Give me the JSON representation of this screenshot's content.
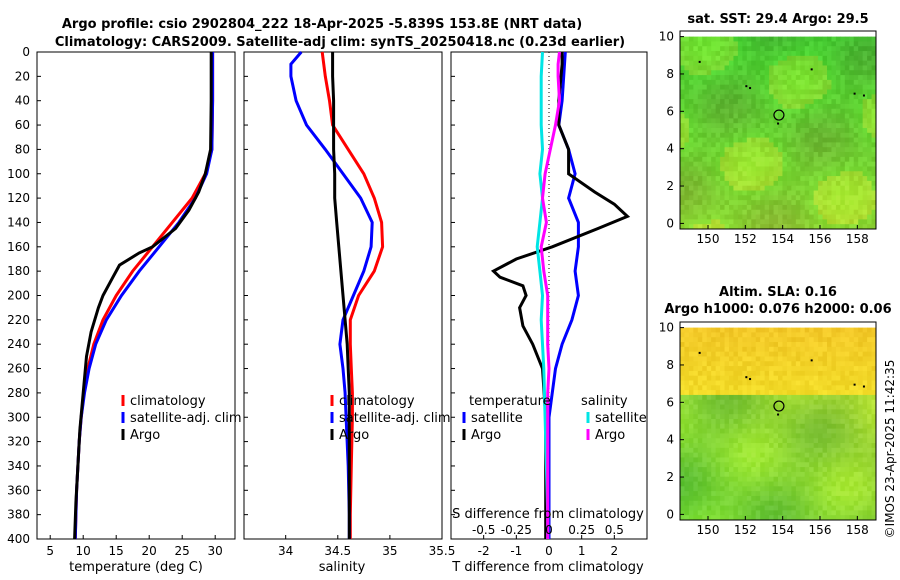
{
  "header": {
    "line1": "Argo profile: csio 2902804_222 18-Apr-2025 -5.839S 153.8E (NRT data)",
    "line2": "Climatology: CARS2009. Satellite-adj clim: synTS_20250418.nc (0.23d earlier)"
  },
  "credit": "©IMOS 23-Apr-2025 11:42:35",
  "colors": {
    "climatology": "#ff0000",
    "satellite": "#0000ff",
    "argo": "#000000",
    "sat_s": "#00e5e5",
    "argo_s": "#ff00ff",
    "sst_fill": "#33cc33",
    "sla_fill": "#d6e84a"
  },
  "chart_data": [
    {
      "id": "temperature",
      "type": "line",
      "xlabel": "temperature (deg C)",
      "ylabel": "",
      "xlim": [
        3,
        33
      ],
      "ylim": [
        0,
        400
      ],
      "xticks": [
        5,
        10,
        15,
        20,
        25,
        30
      ],
      "yticks": [
        0,
        20,
        40,
        60,
        80,
        100,
        120,
        140,
        160,
        180,
        200,
        220,
        240,
        260,
        280,
        300,
        320,
        340,
        360,
        380,
        400
      ],
      "legend": [
        "climatology",
        "satellite-adj. clim",
        "Argo"
      ],
      "series": [
        {
          "name": "climatology",
          "color": "#ff0000",
          "depth": [
            0,
            40,
            80,
            100,
            120,
            140,
            160,
            180,
            200,
            220,
            240,
            260,
            280,
            300,
            320,
            340,
            360,
            380,
            400
          ],
          "values": [
            29.6,
            29.6,
            29.5,
            28.5,
            26.5,
            23.5,
            20.5,
            17.5,
            15.0,
            13.0,
            11.6,
            10.7,
            10.1,
            9.7,
            9.4,
            9.2,
            9.0,
            8.9,
            8.8
          ]
        },
        {
          "name": "satellite-adj. clim",
          "color": "#0000ff",
          "depth": [
            0,
            40,
            80,
            100,
            120,
            140,
            160,
            180,
            200,
            220,
            240,
            260,
            280,
            300,
            320,
            340,
            360,
            380,
            400
          ],
          "values": [
            29.6,
            29.6,
            29.5,
            28.7,
            27.0,
            24.5,
            21.5,
            18.5,
            15.8,
            13.5,
            11.9,
            10.9,
            10.2,
            9.7,
            9.4,
            9.2,
            9.0,
            8.9,
            8.8
          ]
        },
        {
          "name": "Argo",
          "color": "#000000",
          "depth": [
            0,
            40,
            80,
            100,
            115,
            130,
            145,
            160,
            165,
            175,
            185,
            200,
            210,
            230,
            250,
            280,
            310,
            340,
            370,
            400
          ],
          "values": [
            29.4,
            29.4,
            29.3,
            28.5,
            27.5,
            26.0,
            24.0,
            20.5,
            18.5,
            15.5,
            14.5,
            13.0,
            12.3,
            11.2,
            10.5,
            10.0,
            9.5,
            9.2,
            8.9,
            8.7
          ]
        }
      ]
    },
    {
      "id": "salinity",
      "type": "line",
      "xlabel": "salinity",
      "xlim": [
        33.6,
        35.5
      ],
      "ylim": [
        0,
        400
      ],
      "xticks": [
        34,
        34.5,
        35,
        35.5
      ],
      "legend": [
        "climatology",
        "satellite-adj. clim",
        "Argo"
      ],
      "series": [
        {
          "name": "climatology",
          "color": "#ff0000",
          "depth": [
            0,
            20,
            40,
            60,
            80,
            100,
            120,
            140,
            160,
            180,
            200,
            220,
            240,
            260,
            280,
            300,
            340,
            380,
            400
          ],
          "values": [
            34.35,
            34.38,
            34.42,
            34.45,
            34.6,
            34.75,
            34.85,
            34.92,
            34.93,
            34.85,
            34.7,
            34.62,
            34.62,
            34.63,
            34.64,
            34.64,
            34.63,
            34.62,
            34.62
          ]
        },
        {
          "name": "satellite-adj. clim",
          "color": "#0000ff",
          "depth": [
            0,
            10,
            20,
            40,
            60,
            80,
            100,
            120,
            140,
            160,
            180,
            200,
            220,
            240,
            260,
            280,
            300,
            340,
            380,
            400
          ],
          "values": [
            34.15,
            34.05,
            34.05,
            34.1,
            34.2,
            34.38,
            34.55,
            34.72,
            34.83,
            34.82,
            34.75,
            34.65,
            34.55,
            34.52,
            34.55,
            34.57,
            34.58,
            34.6,
            34.61,
            34.61
          ]
        },
        {
          "name": "Argo",
          "color": "#000000",
          "depth": [
            0,
            20,
            40,
            60,
            80,
            100,
            120,
            140,
            160,
            180,
            200,
            220,
            240,
            260,
            280,
            300,
            340,
            380,
            400
          ],
          "values": [
            34.45,
            34.45,
            34.46,
            34.46,
            34.46,
            34.47,
            34.47,
            34.49,
            34.51,
            34.53,
            34.55,
            34.57,
            34.59,
            34.6,
            34.61,
            34.61,
            34.61,
            34.61,
            34.61
          ]
        }
      ]
    },
    {
      "id": "difference",
      "type": "line",
      "xlabel": "T difference from climatology",
      "xlabel_top": "S difference from climatology",
      "xlim": [
        -3,
        3
      ],
      "ylim": [
        0,
        400
      ],
      "xticks": [
        -2,
        -1,
        0,
        1,
        2
      ],
      "xticks_s": [
        "-0.5",
        "-0.25",
        "0",
        "0.25",
        "0.5"
      ],
      "legend_titles": [
        "temperature",
        "salinity"
      ],
      "legend_t": [
        "satellite",
        "Argo"
      ],
      "legend_s": [
        "satellite",
        "Argo"
      ],
      "series": [
        {
          "name": "T satellite",
          "color": "#0000ff",
          "depth": [
            0,
            40,
            60,
            80,
            100,
            120,
            140,
            160,
            180,
            200,
            220,
            240,
            260,
            300,
            340,
            380,
            400
          ],
          "values": [
            0.5,
            0.4,
            0.3,
            0.6,
            0.8,
            0.6,
            0.9,
            0.9,
            0.8,
            0.9,
            0.7,
            0.4,
            0.2,
            0.0,
            0.0,
            0.0,
            0.0
          ]
        },
        {
          "name": "T Argo",
          "color": "#000000",
          "depth": [
            0,
            10,
            40,
            60,
            80,
            100,
            115,
            125,
            135,
            145,
            160,
            170,
            180,
            185,
            192,
            200,
            210,
            225,
            240,
            260,
            300,
            340,
            400
          ],
          "values": [
            0.4,
            0.4,
            0.3,
            0.3,
            0.6,
            0.6,
            1.4,
            2.0,
            2.4,
            1.5,
            0.1,
            -1.0,
            -1.7,
            -1.5,
            -0.8,
            -0.7,
            -0.9,
            -0.8,
            -0.5,
            -0.2,
            -0.1,
            -0.1,
            -0.1
          ]
        },
        {
          "name": "S satellite",
          "color": "#00e5e5",
          "depth": [
            0,
            20,
            40,
            60,
            80,
            100,
            120,
            140,
            160,
            180,
            200,
            220,
            240,
            260,
            300,
            340,
            380,
            400
          ],
          "values": [
            -0.05,
            -0.06,
            -0.06,
            -0.06,
            -0.05,
            -0.07,
            -0.05,
            -0.07,
            -0.09,
            -0.07,
            -0.05,
            -0.06,
            -0.05,
            -0.04,
            -0.03,
            -0.02,
            -0.01,
            -0.01
          ]
        },
        {
          "name": "S Argo",
          "color": "#ff00ff",
          "depth": [
            0,
            10,
            20,
            40,
            60,
            80,
            100,
            120,
            140,
            160,
            180,
            200,
            220,
            240,
            260,
            280,
            300,
            320,
            340,
            360,
            380,
            400
          ],
          "values": [
            0.08,
            0.07,
            0.07,
            0.08,
            0.05,
            0.01,
            -0.03,
            -0.05,
            -0.02,
            -0.06,
            -0.04,
            -0.01,
            -0.01,
            -0.01,
            0.0,
            -0.01,
            -0.01,
            -0.01,
            -0.01,
            -0.01,
            -0.01,
            -0.01
          ]
        }
      ]
    },
    {
      "id": "sst_map",
      "type": "heatmap",
      "title": "sat. SST: 29.4 Argo: 29.5",
      "xticks": [
        150,
        152,
        154,
        156,
        158
      ],
      "yticks": [
        0,
        2,
        4,
        6,
        8,
        10
      ],
      "marker_lon": 153.8,
      "marker_lat": 5.8
    },
    {
      "id": "sla_map",
      "type": "heatmap",
      "title": "Altim. SLA: 0.16",
      "subtitle": "Argo h1000: 0.076 h2000: 0.06",
      "xticks": [
        150,
        152,
        154,
        156,
        158
      ],
      "yticks": [
        0,
        2,
        4,
        6,
        8,
        10
      ],
      "marker_lon": 153.8,
      "marker_lat": 5.8
    }
  ]
}
